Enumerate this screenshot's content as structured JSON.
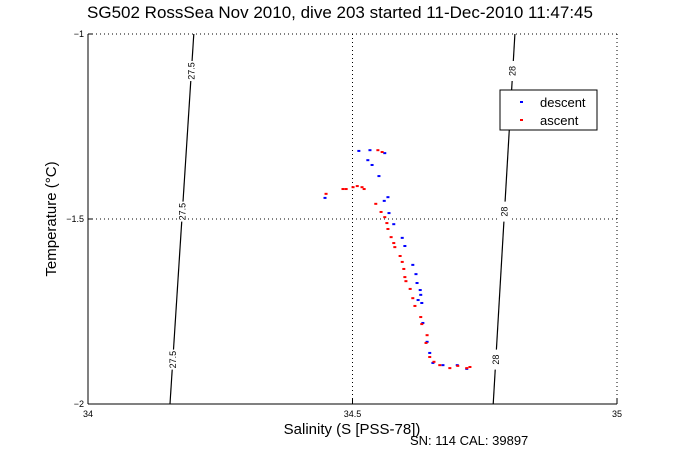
{
  "chart_data": {
    "type": "scatter",
    "title": "SG502 RossSea Nov 2010, dive 203 started 11-Dec-2010 11:47:45",
    "xlabel": "Salinity (S [PSS-78])",
    "ylabel": "Temperature (°C)",
    "xlim": [
      34,
      35
    ],
    "ylim": [
      -2,
      -1
    ],
    "xticks": [
      "34",
      "34.5",
      "35"
    ],
    "yticks": [
      "-1",
      "-1.5",
      "-2"
    ],
    "grid": "dotted at midpoints",
    "legend_position": "top-right",
    "footer": "SN: 114  CAL: 39897",
    "isopycnals": [
      {
        "label": "27.5",
        "s_top": 34.2,
        "s_bottom": 34.155
      },
      {
        "label": "28",
        "s_top": 34.807,
        "s_bottom": 34.766
      }
    ],
    "series": [
      {
        "name": "descent",
        "color": "#0000ff",
        "points": [
          [
            34.512,
            -1.316
          ],
          [
            34.533,
            -1.314
          ],
          [
            34.561,
            -1.322
          ],
          [
            34.529,
            -1.341
          ],
          [
            34.537,
            -1.354
          ],
          [
            34.55,
            -1.384
          ],
          [
            34.567,
            -1.441
          ],
          [
            34.56,
            -1.451
          ],
          [
            34.569,
            -1.484
          ],
          [
            34.578,
            -1.514
          ],
          [
            34.594,
            -1.551
          ],
          [
            34.599,
            -1.573
          ],
          [
            34.614,
            -1.624
          ],
          [
            34.62,
            -1.649
          ],
          [
            34.622,
            -1.673
          ],
          [
            34.628,
            -1.692
          ],
          [
            34.629,
            -1.705
          ],
          [
            34.624,
            -1.719
          ],
          [
            34.631,
            -1.727
          ],
          [
            34.633,
            -1.781
          ],
          [
            34.641,
            -1.832
          ],
          [
            34.646,
            -1.862
          ],
          [
            34.652,
            -1.889
          ],
          [
            34.671,
            -1.895
          ],
          [
            34.698,
            -1.895
          ],
          [
            34.716,
            -1.905
          ],
          [
            34.448,
            -1.443
          ]
        ]
      },
      {
        "name": "ascent",
        "color": "#ff0000",
        "points": [
          [
            34.45,
            -1.432
          ],
          [
            34.482,
            -1.419
          ],
          [
            34.488,
            -1.419
          ],
          [
            34.501,
            -1.414
          ],
          [
            34.509,
            -1.411
          ],
          [
            34.518,
            -1.414
          ],
          [
            34.522,
            -1.419
          ],
          [
            34.548,
            -1.314
          ],
          [
            34.556,
            -1.319
          ],
          [
            34.544,
            -1.459
          ],
          [
            34.554,
            -1.481
          ],
          [
            34.561,
            -1.495
          ],
          [
            34.565,
            -1.511
          ],
          [
            34.567,
            -1.527
          ],
          [
            34.573,
            -1.549
          ],
          [
            34.578,
            -1.565
          ],
          [
            34.58,
            -1.576
          ],
          [
            34.59,
            -1.6
          ],
          [
            34.594,
            -1.616
          ],
          [
            34.597,
            -1.635
          ],
          [
            34.599,
            -1.657
          ],
          [
            34.601,
            -1.668
          ],
          [
            34.609,
            -1.689
          ],
          [
            34.614,
            -1.714
          ],
          [
            34.618,
            -1.735
          ],
          [
            34.629,
            -1.765
          ],
          [
            34.631,
            -1.784
          ],
          [
            34.641,
            -1.814
          ],
          [
            34.639,
            -1.835
          ],
          [
            34.646,
            -1.873
          ],
          [
            34.654,
            -1.886
          ],
          [
            34.665,
            -1.895
          ],
          [
            34.684,
            -1.903
          ],
          [
            34.699,
            -1.897
          ],
          [
            34.716,
            -1.903
          ],
          [
            34.722,
            -1.9
          ]
        ]
      }
    ]
  }
}
